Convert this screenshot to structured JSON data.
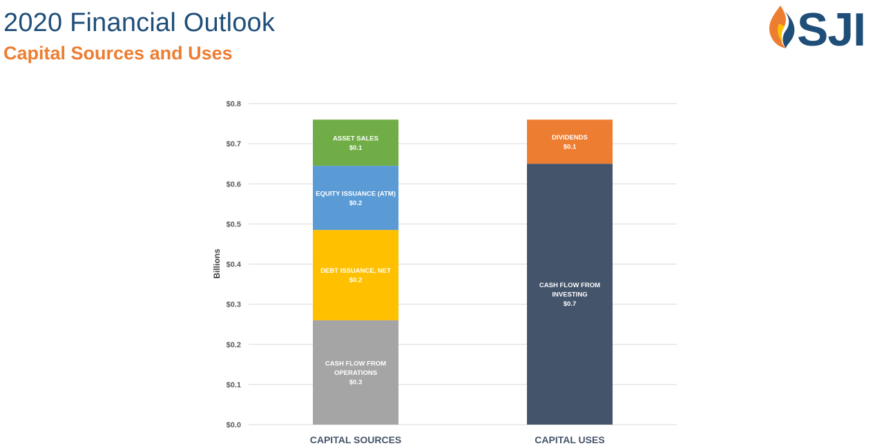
{
  "slide": {
    "title": "2020 Financial Outlook",
    "subtitle": "Capital Sources and Uses",
    "logo_text": "SJI"
  },
  "chart_data": {
    "type": "bar",
    "stacked": true,
    "categories": [
      "CAPITAL SOURCES",
      "CAPITAL USES"
    ],
    "ylabel": "Billions",
    "ylim": [
      0,
      0.8
    ],
    "yticks": [
      0.0,
      0.1,
      0.2,
      0.3,
      0.4,
      0.5,
      0.6,
      0.7,
      0.8
    ],
    "ytick_labels": [
      "$0.0",
      "$0.1",
      "$0.2",
      "$0.3",
      "$0.4",
      "$0.5",
      "$0.6",
      "$0.7",
      "$0.8"
    ],
    "grid": true,
    "stacks": [
      {
        "category": "CAPITAL SOURCES",
        "segments": [
          {
            "label": [
              "CASH FLOW FROM",
              "OPERATIONS"
            ],
            "value_label": "$0.3",
            "value": 0.26,
            "color": "#a5a5a5"
          },
          {
            "label": [
              "DEBT ISSUANCE, NET"
            ],
            "value_label": "$0.2",
            "value": 0.225,
            "color": "#ffc000"
          },
          {
            "label": [
              "EQUITY ISSUANCE (ATM)"
            ],
            "value_label": "$0.2",
            "value": 0.16,
            "color": "#5b9bd5"
          },
          {
            "label": [
              "ASSET SALES"
            ],
            "value_label": "$0.1",
            "value": 0.115,
            "color": "#70ad47"
          }
        ]
      },
      {
        "category": "CAPITAL USES",
        "segments": [
          {
            "label": [
              "CASH FLOW FROM",
              "INVESTING"
            ],
            "value_label": "$0.7",
            "value": 0.65,
            "color": "#44546a"
          },
          {
            "label": [
              "DIVIDENDS"
            ],
            "value_label": "$0.1",
            "value": 0.11,
            "color": "#ed7d31"
          }
        ]
      }
    ]
  }
}
